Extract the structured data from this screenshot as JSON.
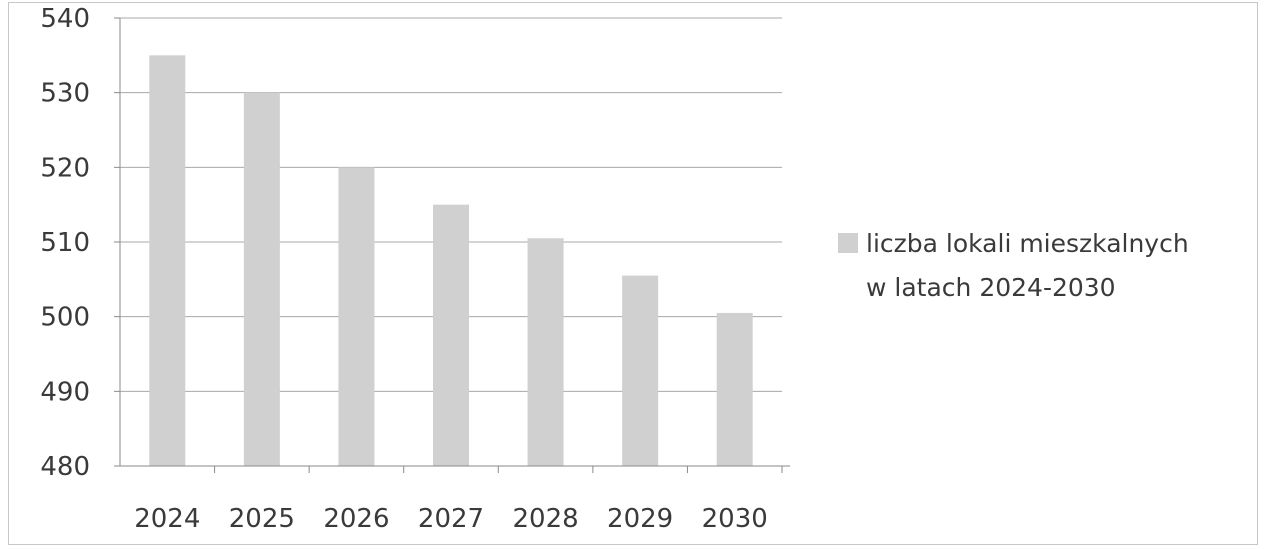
{
  "chart_data": {
    "type": "bar",
    "categories": [
      "2024",
      "2025",
      "2026",
      "2027",
      "2028",
      "2029",
      "2030"
    ],
    "series": [
      {
        "name": "liczba lokali mieszkalnych w latach 2024-2030",
        "values": [
          535,
          530,
          520,
          515,
          510.5,
          505.5,
          500.5
        ]
      }
    ],
    "yticks": [
      "480",
      "490",
      "500",
      "510",
      "520",
      "530",
      "540"
    ],
    "ylim": [
      480,
      540
    ],
    "grid": true,
    "legend": {
      "position": "right",
      "lines": [
        "liczba lokali mieszkalnych",
        "w latach 2024-2030"
      ]
    },
    "colors": {
      "bar": "#d0d0d0",
      "grid": "#a8a8a8",
      "axis": "#8a8a8a",
      "text": "#3a3a3a"
    }
  }
}
